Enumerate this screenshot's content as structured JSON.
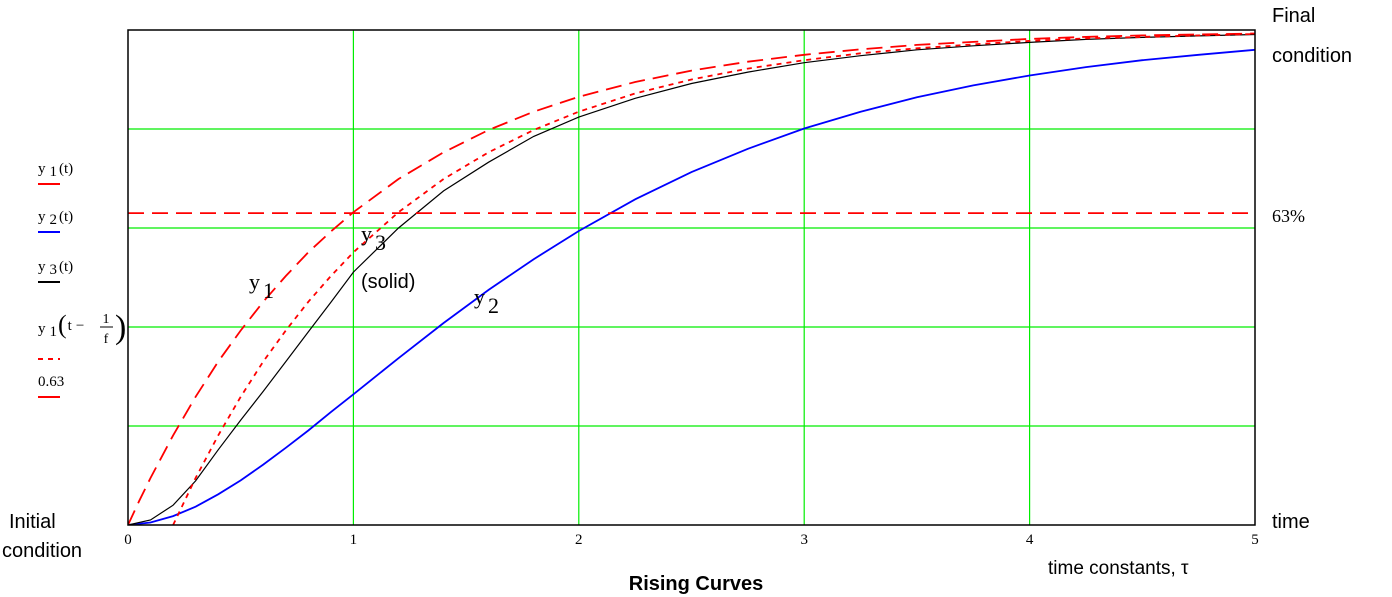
{
  "chart_data": {
    "type": "line",
    "title": "Rising Curves",
    "xlabel": "time constants, τ",
    "xlim": [
      0,
      5
    ],
    "ylim": [
      0,
      1
    ],
    "x_ticks": [
      "0",
      "1",
      "2",
      "3",
      "4",
      "5"
    ],
    "y_gridlines": [
      0.2,
      0.4,
      0.6,
      0.8
    ],
    "grid": true,
    "series": [
      {
        "name": "y 1(t)",
        "color": "#ff0000",
        "dash": "long-dash",
        "points": [
          [
            0,
            0
          ],
          [
            0.05,
            0.049
          ],
          [
            0.1,
            0.095
          ],
          [
            0.2,
            0.181
          ],
          [
            0.3,
            0.259
          ],
          [
            0.4,
            0.33
          ],
          [
            0.5,
            0.393
          ],
          [
            0.6,
            0.451
          ],
          [
            0.7,
            0.503
          ],
          [
            0.8,
            0.551
          ],
          [
            0.9,
            0.593
          ],
          [
            1,
            0.632
          ],
          [
            1.2,
            0.699
          ],
          [
            1.4,
            0.753
          ],
          [
            1.6,
            0.798
          ],
          [
            1.8,
            0.835
          ],
          [
            2,
            0.865
          ],
          [
            2.25,
            0.895
          ],
          [
            2.5,
            0.918
          ],
          [
            2.75,
            0.936
          ],
          [
            3,
            0.95
          ],
          [
            3.25,
            0.961
          ],
          [
            3.5,
            0.97
          ],
          [
            3.75,
            0.976
          ],
          [
            4,
            0.982
          ],
          [
            4.25,
            0.986
          ],
          [
            4.5,
            0.989
          ],
          [
            4.75,
            0.991
          ],
          [
            5,
            0.993
          ]
        ]
      },
      {
        "name": "y 2(t)",
        "color": "#0000ff",
        "dash": "solid",
        "points": [
          [
            0,
            0
          ],
          [
            0.1,
            0.005
          ],
          [
            0.2,
            0.018
          ],
          [
            0.3,
            0.037
          ],
          [
            0.4,
            0.062
          ],
          [
            0.5,
            0.09
          ],
          [
            0.6,
            0.122
          ],
          [
            0.7,
            0.156
          ],
          [
            0.8,
            0.191
          ],
          [
            0.9,
            0.228
          ],
          [
            1,
            0.264
          ],
          [
            1.2,
            0.337
          ],
          [
            1.4,
            0.408
          ],
          [
            1.6,
            0.475
          ],
          [
            1.8,
            0.537
          ],
          [
            2,
            0.594
          ],
          [
            2.25,
            0.658
          ],
          [
            2.5,
            0.713
          ],
          [
            2.75,
            0.76
          ],
          [
            3,
            0.801
          ],
          [
            3.25,
            0.835
          ],
          [
            3.5,
            0.864
          ],
          [
            3.75,
            0.888
          ],
          [
            4,
            0.908
          ],
          [
            4.25,
            0.925
          ],
          [
            4.5,
            0.939
          ],
          [
            4.75,
            0.95
          ],
          [
            5,
            0.96
          ]
        ]
      },
      {
        "name": "y 3(t)",
        "color": "#000000",
        "dash": "solid",
        "points": [
          [
            0,
            0
          ],
          [
            0.1,
            0.01
          ],
          [
            0.2,
            0.04
          ],
          [
            0.3,
            0.089
          ],
          [
            0.4,
            0.152
          ],
          [
            0.5,
            0.212
          ],
          [
            0.6,
            0.27
          ],
          [
            0.7,
            0.33
          ],
          [
            0.8,
            0.39
          ],
          [
            0.9,
            0.45
          ],
          [
            1,
            0.511
          ],
          [
            1.2,
            0.6
          ],
          [
            1.4,
            0.675
          ],
          [
            1.6,
            0.733
          ],
          [
            1.8,
            0.785
          ],
          [
            2,
            0.824
          ],
          [
            2.25,
            0.862
          ],
          [
            2.5,
            0.892
          ],
          [
            2.75,
            0.915
          ],
          [
            3,
            0.934
          ],
          [
            3.25,
            0.948
          ],
          [
            3.5,
            0.96
          ],
          [
            3.75,
            0.968
          ],
          [
            4,
            0.975
          ],
          [
            4.25,
            0.981
          ],
          [
            4.5,
            0.985
          ],
          [
            4.75,
            0.988
          ],
          [
            5,
            0.991
          ]
        ]
      },
      {
        "name": "y 1(t − 1/f)",
        "color": "#ff0000",
        "dash": "short-dash",
        "points": [
          [
            0.2,
            0
          ],
          [
            0.3,
            0.095
          ],
          [
            0.4,
            0.181
          ],
          [
            0.5,
            0.259
          ],
          [
            0.6,
            0.33
          ],
          [
            0.7,
            0.393
          ],
          [
            0.8,
            0.451
          ],
          [
            0.9,
            0.503
          ],
          [
            1,
            0.551
          ],
          [
            1.2,
            0.632
          ],
          [
            1.4,
            0.699
          ],
          [
            1.6,
            0.753
          ],
          [
            1.8,
            0.798
          ],
          [
            2,
            0.835
          ],
          [
            2.25,
            0.872
          ],
          [
            2.5,
            0.9
          ],
          [
            2.75,
            0.922
          ],
          [
            3,
            0.939
          ],
          [
            3.25,
            0.953
          ],
          [
            3.5,
            0.963
          ],
          [
            3.75,
            0.971
          ],
          [
            4,
            0.978
          ],
          [
            4.25,
            0.983
          ],
          [
            4.5,
            0.986
          ],
          [
            4.75,
            0.989
          ],
          [
            5,
            0.992
          ]
        ]
      },
      {
        "name": "0.63",
        "color": "#ff0000",
        "dash": "long-dash",
        "points": [
          [
            0,
            0.63
          ],
          [
            5,
            0.63
          ]
        ]
      }
    ],
    "legend": {
      "placement": "left",
      "entries": [
        {
          "base": "y",
          "sub": "1",
          "suffix": "(t)",
          "color": "#ff0000",
          "dash": "long-dash"
        },
        {
          "base": "y",
          "sub": "2",
          "suffix": "(t)",
          "color": "#0000ff",
          "dash": "solid"
        },
        {
          "base": "y",
          "sub": "3",
          "suffix": "(t)",
          "color": "#000000",
          "dash": "solid"
        },
        {
          "base": "y",
          "sub": "1",
          "suffix": "(t − 1/f)",
          "color": "#ff0000",
          "dash": "short-dash"
        },
        {
          "base": "0.63",
          "sub": "",
          "suffix": "",
          "color": "#ff0000",
          "dash": "long-dash"
        }
      ]
    },
    "annotations": {
      "initial_condition": [
        "Initial",
        "condition"
      ],
      "final_condition": [
        "Final",
        "condition"
      ],
      "time": "time",
      "percent_63": "63%",
      "y1_label": {
        "base": "y",
        "sub": "1"
      },
      "y2_label": {
        "base": "y",
        "sub": "2"
      },
      "y3_label": {
        "base": "y",
        "sub": "3"
      },
      "solid_note": "(solid)",
      "legend_fraction": {
        "num": "1",
        "den": "f"
      }
    },
    "colors": {
      "grid": "#00ee00",
      "frame": "#000000"
    }
  }
}
